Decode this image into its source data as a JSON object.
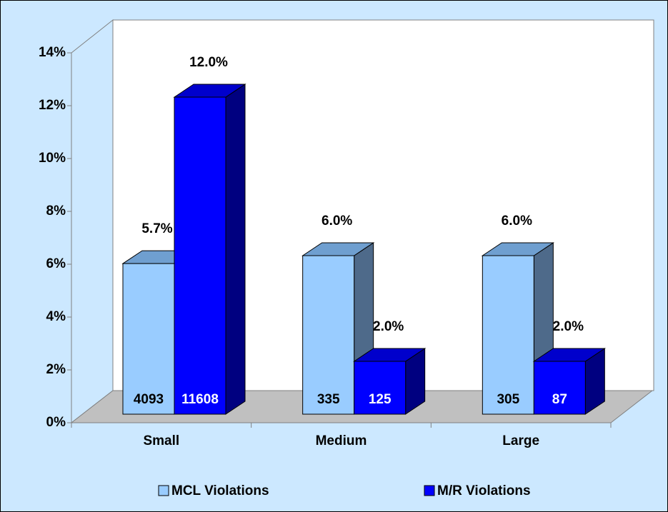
{
  "chart_data": {
    "type": "bar3d",
    "categories": [
      "Small",
      "Medium",
      "Large"
    ],
    "series": [
      {
        "name": "MCL Violations",
        "color": "#99ccff",
        "values": [
          5.7,
          6.0,
          6.0
        ],
        "value_labels": [
          "5.7%",
          "6.0%",
          "6.0%"
        ],
        "counts": [
          4093,
          335,
          305
        ]
      },
      {
        "name": "M/R Violations",
        "color": "#0000ff",
        "values": [
          12.0,
          2.0,
          2.0
        ],
        "value_labels": [
          "12.0%",
          "2.0%",
          "2.0%"
        ],
        "counts": [
          11608,
          125,
          87
        ]
      }
    ],
    "ylim": [
      0,
      14
    ],
    "yticks": [
      {
        "value": 0,
        "label": "0%"
      },
      {
        "value": 2,
        "label": "2%"
      },
      {
        "value": 4,
        "label": "4%"
      },
      {
        "value": 6,
        "label": "6%"
      },
      {
        "value": 8,
        "label": "8%"
      },
      {
        "value": 10,
        "label": "10%"
      },
      {
        "value": 12,
        "label": "12%"
      },
      {
        "value": 14,
        "label": "14%"
      }
    ],
    "legend": "bottom"
  }
}
